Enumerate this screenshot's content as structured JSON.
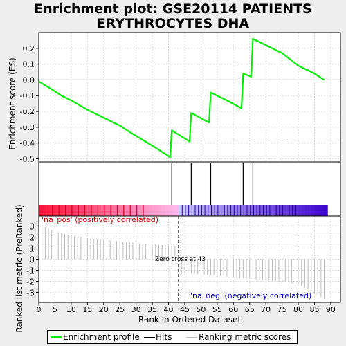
{
  "chart_data": {
    "type": "line",
    "title_line1": "Enrichment plot: GSE20114 PATIENTS",
    "title_line2": "ERYTHROCYTES DHA",
    "top_panel": {
      "ylabel": "Enrichment score (ES)",
      "ylim": [
        -0.52,
        0.3
      ],
      "yticks": [
        0.2,
        0.1,
        0.0,
        -0.1,
        -0.2,
        -0.3,
        -0.4,
        -0.5
      ],
      "ytick_labels": [
        "0.2",
        "0.1",
        "0.0",
        "-0.1",
        "-0.2",
        "-0.3",
        "-0.4",
        "-0.5"
      ],
      "series_color": "#00ee00",
      "points": [
        [
          0,
          -0.01
        ],
        [
          4,
          -0.06
        ],
        [
          7,
          -0.1
        ],
        [
          10,
          -0.13
        ],
        [
          15,
          -0.19
        ],
        [
          20,
          -0.24
        ],
        [
          25,
          -0.29
        ],
        [
          28,
          -0.33
        ],
        [
          32,
          -0.38
        ],
        [
          36,
          -0.43
        ],
        [
          40.5,
          -0.49
        ],
        [
          41,
          -0.32
        ],
        [
          46.5,
          -0.39
        ],
        [
          47,
          -0.21
        ],
        [
          52.5,
          -0.27
        ],
        [
          53,
          -0.08
        ],
        [
          58,
          -0.13
        ],
        [
          62.5,
          -0.18
        ],
        [
          63,
          0.04
        ],
        [
          65.5,
          0.02
        ],
        [
          66,
          0.26
        ],
        [
          70,
          0.22
        ],
        [
          75,
          0.17
        ],
        [
          80,
          0.09
        ],
        [
          85,
          0.04
        ],
        [
          88,
          0.0
        ]
      ]
    },
    "hits": [
      41,
      47,
      53,
      63,
      66
    ],
    "bottom_panel": {
      "xlabel": "Rank in Ordered Dataset",
      "ylabel": "Ranked list metric (PreRanked)",
      "ylim": [
        -3.9,
        3.9
      ],
      "yticks": [
        3,
        2,
        1,
        0,
        -1,
        -2,
        -3
      ],
      "ytick_labels": [
        "3",
        "2",
        "1",
        "0",
        "-1",
        "-2",
        "-3"
      ],
      "xlim": [
        0,
        93
      ],
      "xticks": [
        0,
        5,
        10,
        15,
        20,
        25,
        30,
        35,
        40,
        45,
        50,
        55,
        60,
        65,
        70,
        75,
        80,
        85,
        90
      ],
      "xtick_labels": [
        "0",
        "5",
        "10",
        "15",
        "20",
        "25",
        "30",
        "35",
        "40",
        "45",
        "50",
        "55",
        "60",
        "65",
        "70",
        "75",
        "80",
        "85",
        "90"
      ],
      "metric_shape": [
        [
          0,
          3.3
        ],
        [
          2,
          2.9
        ],
        [
          5,
          2.5
        ],
        [
          8,
          2.3
        ],
        [
          12,
          2.0
        ],
        [
          18,
          1.8
        ],
        [
          25,
          1.6
        ],
        [
          32,
          1.4
        ],
        [
          38,
          1.3
        ],
        [
          42.9,
          1.2
        ],
        [
          43,
          0.0
        ],
        [
          43.5,
          -1.2
        ],
        [
          48,
          -1.3
        ],
        [
          55,
          -1.5
        ],
        [
          62,
          -1.7
        ],
        [
          70,
          -1.9
        ],
        [
          77,
          -2.1
        ],
        [
          80,
          -2.3
        ],
        [
          83,
          -2.7
        ],
        [
          85,
          -3.1
        ],
        [
          88,
          -3.6
        ]
      ],
      "zero_cross_label": "Zero cross at 43",
      "zero_cross": 43,
      "pos_label": "'na_pos' (positively correlated)",
      "neg_label": "'na_neg' (negatively correlated)",
      "pos_color": "#cc0000",
      "neg_color": "#0000bb"
    },
    "legend": {
      "placement": "bottom",
      "items": [
        {
          "label": "Enrichment profile",
          "color": "#00ee00",
          "kind": "thick-line"
        },
        {
          "label": "Hits",
          "color": "#000000",
          "kind": "line"
        },
        {
          "label": "Ranking metric scores",
          "color": "#bbbbbb",
          "kind": "thin-line"
        }
      ]
    }
  }
}
